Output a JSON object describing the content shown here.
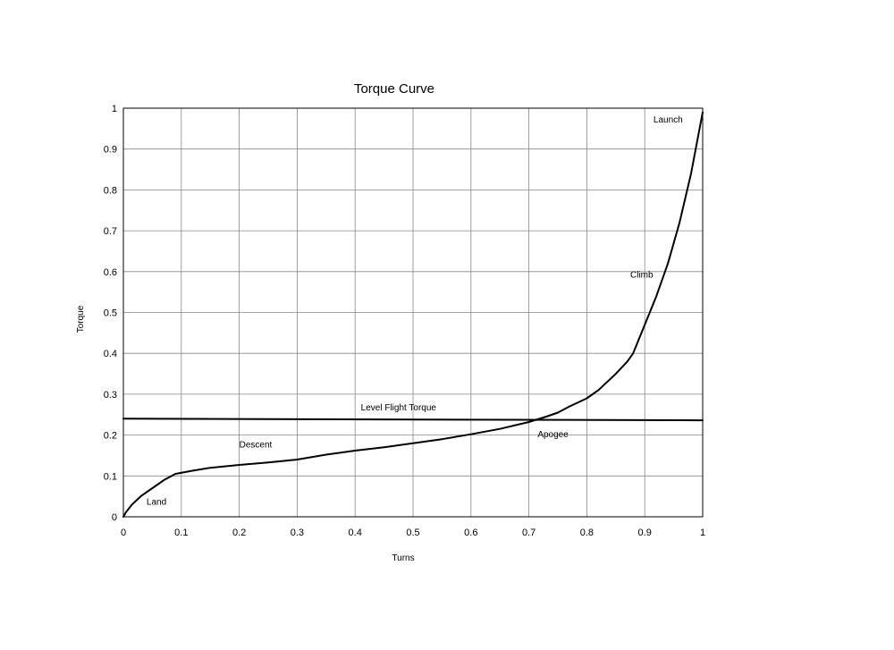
{
  "chart_data": {
    "type": "line",
    "title": "Torque Curve",
    "xlabel": "Turns",
    "ylabel": "Torque",
    "xlim": [
      0,
      1
    ],
    "ylim": [
      0,
      1
    ],
    "x_ticks": [
      0,
      0.1,
      0.2,
      0.3,
      0.4,
      0.5,
      0.6,
      0.7,
      0.8,
      0.9,
      1
    ],
    "y_ticks": [
      0,
      0.1,
      0.2,
      0.3,
      0.4,
      0.5,
      0.6,
      0.7,
      0.8,
      0.9,
      1
    ],
    "x_tick_labels": [
      "0",
      "0.1",
      "0.2",
      "0.3",
      "0.4",
      "0.5",
      "0.6",
      "0.7",
      "0.8",
      "0.9",
      "1"
    ],
    "y_tick_labels": [
      "0",
      "0.1",
      "0.2",
      "0.3",
      "0.4",
      "0.5",
      "0.6",
      "0.7",
      "0.8",
      "0.9",
      "1"
    ],
    "grid": true,
    "legend": "none",
    "series": [
      {
        "x": [
          0,
          0.005,
          0.015,
          0.03,
          0.05,
          0.07,
          0.09,
          0.12,
          0.15,
          0.2,
          0.25,
          0.3,
          0.35,
          0.4,
          0.45,
          0.5,
          0.55,
          0.6,
          0.65,
          0.7,
          0.73,
          0.75,
          0.77,
          0.8,
          0.82,
          0.85,
          0.87,
          0.88,
          0.9,
          0.92,
          0.94,
          0.96,
          0.98,
          1.0
        ],
        "y": [
          0,
          0.012,
          0.03,
          0.05,
          0.07,
          0.09,
          0.105,
          0.113,
          0.12,
          0.127,
          0.133,
          0.14,
          0.152,
          0.162,
          0.17,
          0.18,
          0.19,
          0.202,
          0.215,
          0.232,
          0.245,
          0.255,
          0.27,
          0.29,
          0.31,
          0.35,
          0.38,
          0.4,
          0.47,
          0.54,
          0.62,
          0.72,
          0.84,
          0.99
        ],
        "color": "#000000"
      },
      {
        "x": [
          0,
          1
        ],
        "y": [
          0.24,
          0.236
        ],
        "color": "#000000"
      }
    ],
    "annotations": [
      {
        "text": "Land",
        "x": 0.04,
        "y": 0.03
      },
      {
        "text": "Descent",
        "x": 0.2,
        "y": 0.17
      },
      {
        "text": "Level Flight Torque",
        "x": 0.41,
        "y": 0.26
      },
      {
        "text": "Apogee",
        "x": 0.715,
        "y": 0.195
      },
      {
        "text": "Climb",
        "x": 0.875,
        "y": 0.585
      },
      {
        "text": "Launch",
        "x": 0.915,
        "y": 0.965
      }
    ]
  }
}
